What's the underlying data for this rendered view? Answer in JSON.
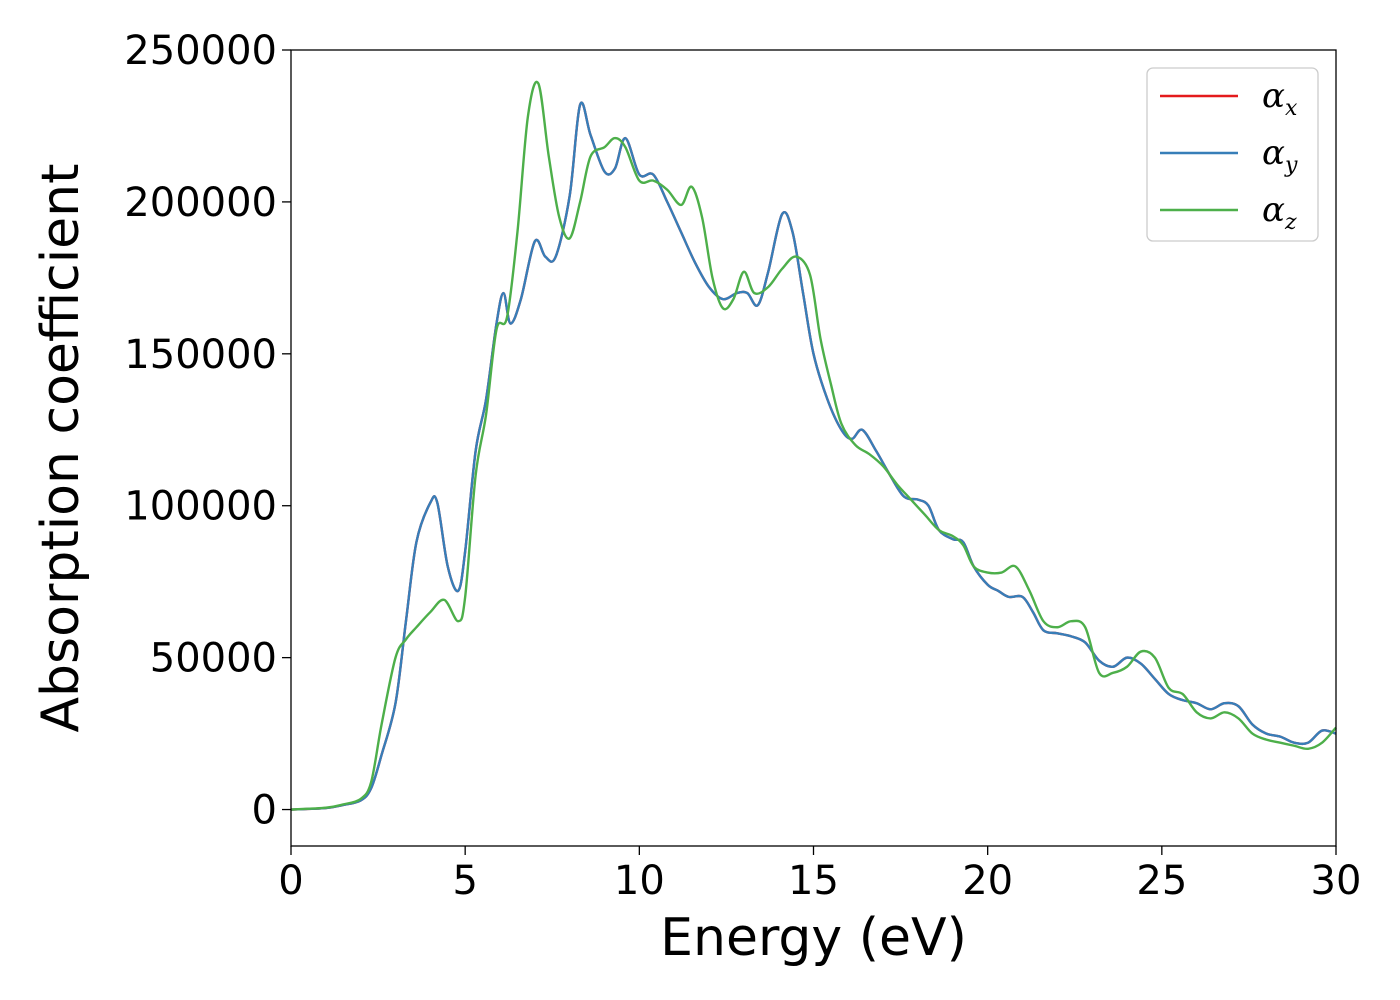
{
  "chart_data": {
    "type": "line",
    "xlabel": "Energy (eV)",
    "ylabel": "Absorption coefficient",
    "xlim": [
      0,
      30
    ],
    "ylim": [
      -12000,
      250000
    ],
    "xticks": [
      0,
      5,
      10,
      15,
      20,
      25,
      30
    ],
    "yticks": [
      0,
      50000,
      100000,
      150000,
      200000,
      250000
    ],
    "xtick_labels": [
      "0",
      "5",
      "10",
      "15",
      "20",
      "25",
      "30"
    ],
    "ytick_labels": [
      "0",
      "50000",
      "100000",
      "150000",
      "200000",
      "250000"
    ],
    "grid": false,
    "legend_position": "top-right",
    "series": [
      {
        "name": "αx",
        "symbol": "α",
        "subscript": "x",
        "color": "#e41a1c",
        "x": [
          0,
          1,
          1.5,
          2,
          2.3,
          2.6,
          3,
          3.3,
          3.6,
          4,
          4.2,
          4.5,
          4.8,
          5,
          5.3,
          5.6,
          5.9,
          6.1,
          6.3,
          6.6,
          7,
          7.3,
          7.6,
          8,
          8.3,
          8.6,
          9,
          9.3,
          9.6,
          10,
          10.4,
          10.8,
          11.2,
          11.6,
          12,
          12.4,
          12.8,
          13.1,
          13.4,
          13.7,
          14.1,
          14.4,
          14.7,
          15,
          15.4,
          15.8,
          16.1,
          16.4,
          16.8,
          17.2,
          17.6,
          18,
          18.3,
          18.6,
          19,
          19.3,
          19.6,
          20,
          20.3,
          20.6,
          21,
          21.3,
          21.6,
          22,
          22.4,
          22.8,
          23.2,
          23.6,
          24,
          24.4,
          24.8,
          25.2,
          25.6,
          26,
          26.4,
          26.8,
          27.2,
          27.6,
          28,
          28.4,
          28.8,
          29.2,
          29.6,
          30
        ],
        "y": [
          0,
          500,
          1500,
          3000,
          7000,
          18000,
          35000,
          62000,
          88000,
          101000,
          101000,
          80000,
          72000,
          85000,
          118000,
          135000,
          160000,
          170000,
          160000,
          168000,
          187000,
          182000,
          182000,
          202000,
          232000,
          222000,
          210000,
          211000,
          221000,
          209000,
          209000,
          200000,
          190000,
          180000,
          172000,
          168000,
          170000,
          170000,
          166000,
          177000,
          196000,
          190000,
          170000,
          150000,
          135000,
          125000,
          122000,
          125000,
          118000,
          110000,
          103000,
          102000,
          100000,
          92000,
          89000,
          88000,
          80000,
          74000,
          72000,
          70000,
          70000,
          65000,
          59000,
          58000,
          57000,
          55000,
          49000,
          47000,
          50000,
          48000,
          43000,
          38000,
          36000,
          35000,
          33000,
          35000,
          34000,
          28000,
          25000,
          24000,
          22000,
          22000,
          26000,
          25000
        ]
      },
      {
        "name": "αy",
        "symbol": "α",
        "subscript": "y",
        "color": "#377eb8",
        "x": [
          0,
          1,
          1.5,
          2,
          2.3,
          2.6,
          3,
          3.3,
          3.6,
          4,
          4.2,
          4.5,
          4.8,
          5,
          5.3,
          5.6,
          5.9,
          6.1,
          6.3,
          6.6,
          7,
          7.3,
          7.6,
          8,
          8.3,
          8.6,
          9,
          9.3,
          9.6,
          10,
          10.4,
          10.8,
          11.2,
          11.6,
          12,
          12.4,
          12.8,
          13.1,
          13.4,
          13.7,
          14.1,
          14.4,
          14.7,
          15,
          15.4,
          15.8,
          16.1,
          16.4,
          16.8,
          17.2,
          17.6,
          18,
          18.3,
          18.6,
          19,
          19.3,
          19.6,
          20,
          20.3,
          20.6,
          21,
          21.3,
          21.6,
          22,
          22.4,
          22.8,
          23.2,
          23.6,
          24,
          24.4,
          24.8,
          25.2,
          25.6,
          26,
          26.4,
          26.8,
          27.2,
          27.6,
          28,
          28.4,
          28.8,
          29.2,
          29.6,
          30
        ],
        "y": [
          0,
          500,
          1500,
          3000,
          7000,
          18000,
          35000,
          62000,
          88000,
          101000,
          101000,
          80000,
          72000,
          85000,
          118000,
          135000,
          160000,
          170000,
          160000,
          168000,
          187000,
          182000,
          182000,
          202000,
          232000,
          222000,
          210000,
          211000,
          221000,
          209000,
          209000,
          200000,
          190000,
          180000,
          172000,
          168000,
          170000,
          170000,
          166000,
          177000,
          196000,
          190000,
          170000,
          150000,
          135000,
          125000,
          122000,
          125000,
          118000,
          110000,
          103000,
          102000,
          100000,
          92000,
          89000,
          88000,
          80000,
          74000,
          72000,
          70000,
          70000,
          65000,
          59000,
          58000,
          57000,
          55000,
          49000,
          47000,
          50000,
          48000,
          43000,
          38000,
          36000,
          35000,
          33000,
          35000,
          34000,
          28000,
          25000,
          24000,
          22000,
          22000,
          26000,
          25000
        ]
      },
      {
        "name": "αz",
        "symbol": "α",
        "subscript": "z",
        "color": "#4daf4a",
        "x": [
          0,
          1,
          1.5,
          2,
          2.3,
          2.6,
          3,
          3.3,
          3.6,
          4,
          4.4,
          4.8,
          5,
          5.3,
          5.6,
          5.9,
          6.2,
          6.5,
          6.8,
          7.1,
          7.4,
          7.7,
          8,
          8.3,
          8.6,
          9,
          9.3,
          9.6,
          10,
          10.4,
          10.8,
          11.2,
          11.5,
          11.8,
          12.1,
          12.4,
          12.7,
          13,
          13.3,
          13.7,
          14.1,
          14.5,
          14.9,
          15.2,
          15.5,
          15.8,
          16.2,
          16.6,
          17,
          17.4,
          17.8,
          18.2,
          18.6,
          19,
          19.3,
          19.6,
          20,
          20.4,
          20.8,
          21.2,
          21.6,
          22,
          22.4,
          22.8,
          23.2,
          23.6,
          24,
          24.4,
          24.8,
          25.2,
          25.6,
          26,
          26.4,
          26.8,
          27.2,
          27.6,
          28,
          28.4,
          28.8,
          29.2,
          29.6,
          30
        ],
        "y": [
          0,
          600,
          1700,
          3500,
          9000,
          28000,
          50000,
          56000,
          60000,
          65000,
          69000,
          62000,
          70000,
          110000,
          130000,
          158000,
          162000,
          190000,
          228000,
          239000,
          215000,
          195000,
          188000,
          200000,
          215000,
          218000,
          221000,
          218000,
          207000,
          207000,
          204000,
          199000,
          205000,
          195000,
          175000,
          165000,
          168000,
          177000,
          170000,
          172000,
          178000,
          182000,
          176000,
          155000,
          140000,
          127000,
          120000,
          117000,
          113000,
          107000,
          102000,
          97000,
          92000,
          90000,
          87000,
          80000,
          78000,
          78000,
          80000,
          72000,
          62000,
          60000,
          62000,
          60000,
          45000,
          45000,
          47000,
          52000,
          50000,
          40000,
          38000,
          32000,
          30000,
          32000,
          30000,
          25000,
          23000,
          22000,
          21000,
          20000,
          22000,
          27000
        ]
      }
    ]
  }
}
